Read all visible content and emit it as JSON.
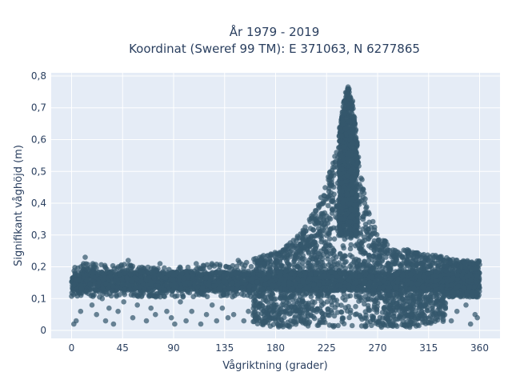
{
  "chart_data": {
    "type": "scatter",
    "title": "År 1979 - 2019",
    "subtitle": "Koordinat (Sweref 99 TM): E 371063, N 6277865",
    "xlabel": "Vågriktning (grader)",
    "ylabel": "Signifikant våghöjd (m)",
    "xlim": [
      -18,
      378
    ],
    "ylim": [
      -0.025,
      0.81
    ],
    "xticks": [
      0,
      45,
      90,
      135,
      180,
      225,
      270,
      315,
      360
    ],
    "xtick_labels": [
      "0",
      "45",
      "90",
      "135",
      "180",
      "225",
      "270",
      "315",
      "360"
    ],
    "yticks": [
      0,
      0.1,
      0.2,
      0.3,
      0.4,
      0.5,
      0.6,
      0.7,
      0.8
    ],
    "ytick_labels": [
      "0",
      "0,1",
      "0,2",
      "0,3",
      "0,4",
      "0,5",
      "0,6",
      "0,7",
      "0,8"
    ],
    "grid": true,
    "marker_color": "#34576c",
    "plot_bg": "#e5ecf6",
    "envelope": [
      [
        0,
        0.01,
        0.22
      ],
      [
        15,
        0.03,
        0.21
      ],
      [
        30,
        0.03,
        0.21
      ],
      [
        45,
        0.03,
        0.21
      ],
      [
        60,
        0.04,
        0.2
      ],
      [
        75,
        0.04,
        0.2
      ],
      [
        90,
        0.03,
        0.2
      ],
      [
        105,
        0.03,
        0.2
      ],
      [
        120,
        0.03,
        0.21
      ],
      [
        135,
        0.02,
        0.21
      ],
      [
        150,
        0.02,
        0.22
      ],
      [
        165,
        0.02,
        0.23
      ],
      [
        180,
        0.01,
        0.25
      ],
      [
        195,
        0.01,
        0.28
      ],
      [
        205,
        0.01,
        0.32
      ],
      [
        215,
        0.01,
        0.38
      ],
      [
        225,
        0.01,
        0.47
      ],
      [
        232,
        0.01,
        0.55
      ],
      [
        237,
        0.01,
        0.65
      ],
      [
        241,
        0.01,
        0.74
      ],
      [
        244,
        0.01,
        0.77
      ],
      [
        247,
        0.01,
        0.75
      ],
      [
        250,
        0.01,
        0.66
      ],
      [
        254,
        0.01,
        0.52
      ],
      [
        260,
        0.01,
        0.4
      ],
      [
        270,
        0.01,
        0.31
      ],
      [
        280,
        0.01,
        0.27
      ],
      [
        300,
        0.01,
        0.25
      ],
      [
        315,
        0.02,
        0.24
      ],
      [
        330,
        0.03,
        0.23
      ],
      [
        345,
        0.04,
        0.22
      ],
      [
        360,
        0.04,
        0.22
      ]
    ],
    "dense_band": [
      0.125,
      0.185
    ],
    "outliers": [
      [
        2,
        0.02
      ],
      [
        4,
        0.03
      ],
      [
        8,
        0.06
      ],
      [
        12,
        0.23
      ],
      [
        18,
        0.08
      ],
      [
        22,
        0.05
      ],
      [
        27,
        0.1
      ],
      [
        30,
        0.03
      ],
      [
        33,
        0.07
      ],
      [
        37,
        0.02
      ],
      [
        41,
        0.06
      ],
      [
        46,
        0.09
      ],
      [
        50,
        0.22
      ],
      [
        54,
        0.04
      ],
      [
        58,
        0.08
      ],
      [
        62,
        0.11
      ],
      [
        66,
        0.03
      ],
      [
        70,
        0.07
      ],
      [
        74,
        0.05
      ],
      [
        78,
        0.21
      ],
      [
        84,
        0.06
      ],
      [
        88,
        0.04
      ],
      [
        91,
        0.02
      ],
      [
        96,
        0.09
      ],
      [
        101,
        0.03
      ],
      [
        106,
        0.06
      ],
      [
        110,
        0.21
      ],
      [
        114,
        0.02
      ],
      [
        119,
        0.05
      ],
      [
        124,
        0.08
      ],
      [
        128,
        0.03
      ],
      [
        133,
        0.07
      ],
      [
        138,
        0.04
      ],
      [
        143,
        0.05
      ],
      [
        147,
        0.22
      ],
      [
        152,
        0.03
      ],
      [
        156,
        0.06
      ],
      [
        162,
        0.04
      ],
      [
        168,
        0.02
      ],
      [
        335,
        0.03
      ],
      [
        340,
        0.06
      ],
      [
        348,
        0.08
      ],
      [
        352,
        0.02
      ],
      [
        356,
        0.05
      ],
      [
        358,
        0.04
      ]
    ]
  }
}
